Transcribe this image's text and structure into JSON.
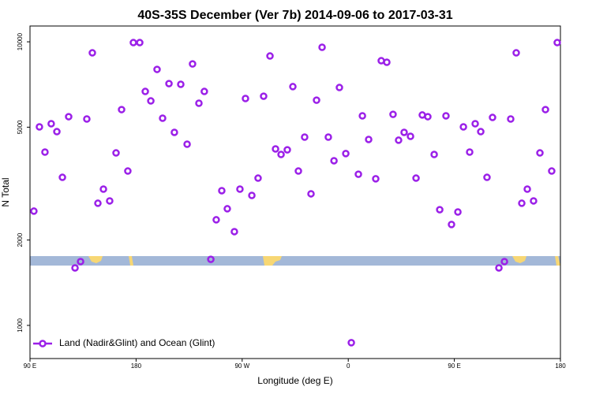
{
  "chart_data": {
    "type": "scatter",
    "title": "40S-35S December (Ver 7b)   2014-09-06 to 2017-03-31",
    "xlabel": "Longitude (deg E)",
    "ylabel": "N Total",
    "xlim": [
      90,
      540
    ],
    "xticks": [
      {
        "value": 90,
        "label": "90 E"
      },
      {
        "value": 180,
        "label": "180"
      },
      {
        "value": 270,
        "label": "90 W"
      },
      {
        "value": 360,
        "label": "0"
      },
      {
        "value": 450,
        "label": "90 E"
      },
      {
        "value": 540,
        "label": "180"
      }
    ],
    "ylim": [
      764,
      11370
    ],
    "yticks": [
      1000,
      2000,
      5000,
      10000
    ],
    "log_y": true,
    "legend": "bottomleft",
    "series": [
      {
        "name": "Land (Nadir&Glint) and Ocean (Glint)",
        "color": "#9b20e8",
        "x": [
          93.3,
          98,
          102.7,
          108,
          112.8,
          117.5,
          122.8,
          128.2,
          132.9,
          138.2,
          142.9,
          147.6,
          152.3,
          157.6,
          163,
          167.7,
          173,
          177.7,
          183.1,
          187.8,
          192.5,
          197.8,
          202.5,
          207.9,
          212.5,
          217.9,
          223.3,
          227.9,
          233.3,
          237.9,
          243.4,
          248,
          252.7,
          257.4,
          263.4,
          268.1,
          272.8,
          278.2,
          283.5,
          288.2,
          293.6,
          298.3,
          303,
          308.3,
          313,
          317.7,
          323,
          328.4,
          333.1,
          337.8,
          343.1,
          347.9,
          352.5,
          357.9,
          362.6,
          368.6,
          372,
          377.3,
          383.3,
          388,
          392.7,
          398,
          402.7,
          407.4,
          412.8,
          417.5,
          422.8,
          427.5,
          432.9,
          437.6,
          442.9,
          447.6,
          453,
          457.7,
          463,
          467.7,
          472.4,
          477.7,
          482.4,
          487.8,
          492.5,
          497.8,
          502.5,
          507.2,
          511.9,
          517.2,
          522.6,
          527.3,
          532.6,
          537.3
        ],
        "values": [
          2529,
          5012,
          4084,
          5142,
          4822,
          3327,
          5445,
          1595,
          1679,
          5343,
          9144,
          2696,
          3024,
          2748,
          4057,
          5768,
          3502,
          9937,
          9937,
          6683,
          6189,
          7993,
          5379,
          7123,
          4794,
          7080,
          4354,
          8358,
          6073,
          6683,
          1710,
          2357,
          2986,
          2578,
          2141,
          3024,
          6310,
          2873,
          3306,
          6430,
          8913,
          4190,
          4006,
          4160,
          6950,
          3502,
          4612,
          2911,
          6226,
          9565,
          4612,
          3808,
          6900,
          4036,
          869,
          3412,
          5483,
          4526,
          3289,
          8577,
          8472,
          5548,
          4498,
          4794,
          4642,
          3306,
          5520,
          5445,
          4006,
          2559,
          5483,
          2269,
          2512,
          5012,
          4084,
          5142,
          4822,
          3327,
          5411,
          1595,
          1679,
          5343,
          9144,
          2696,
          3024,
          2748,
          4057,
          5768,
          3502,
          9937
        ]
      }
    ]
  }
}
